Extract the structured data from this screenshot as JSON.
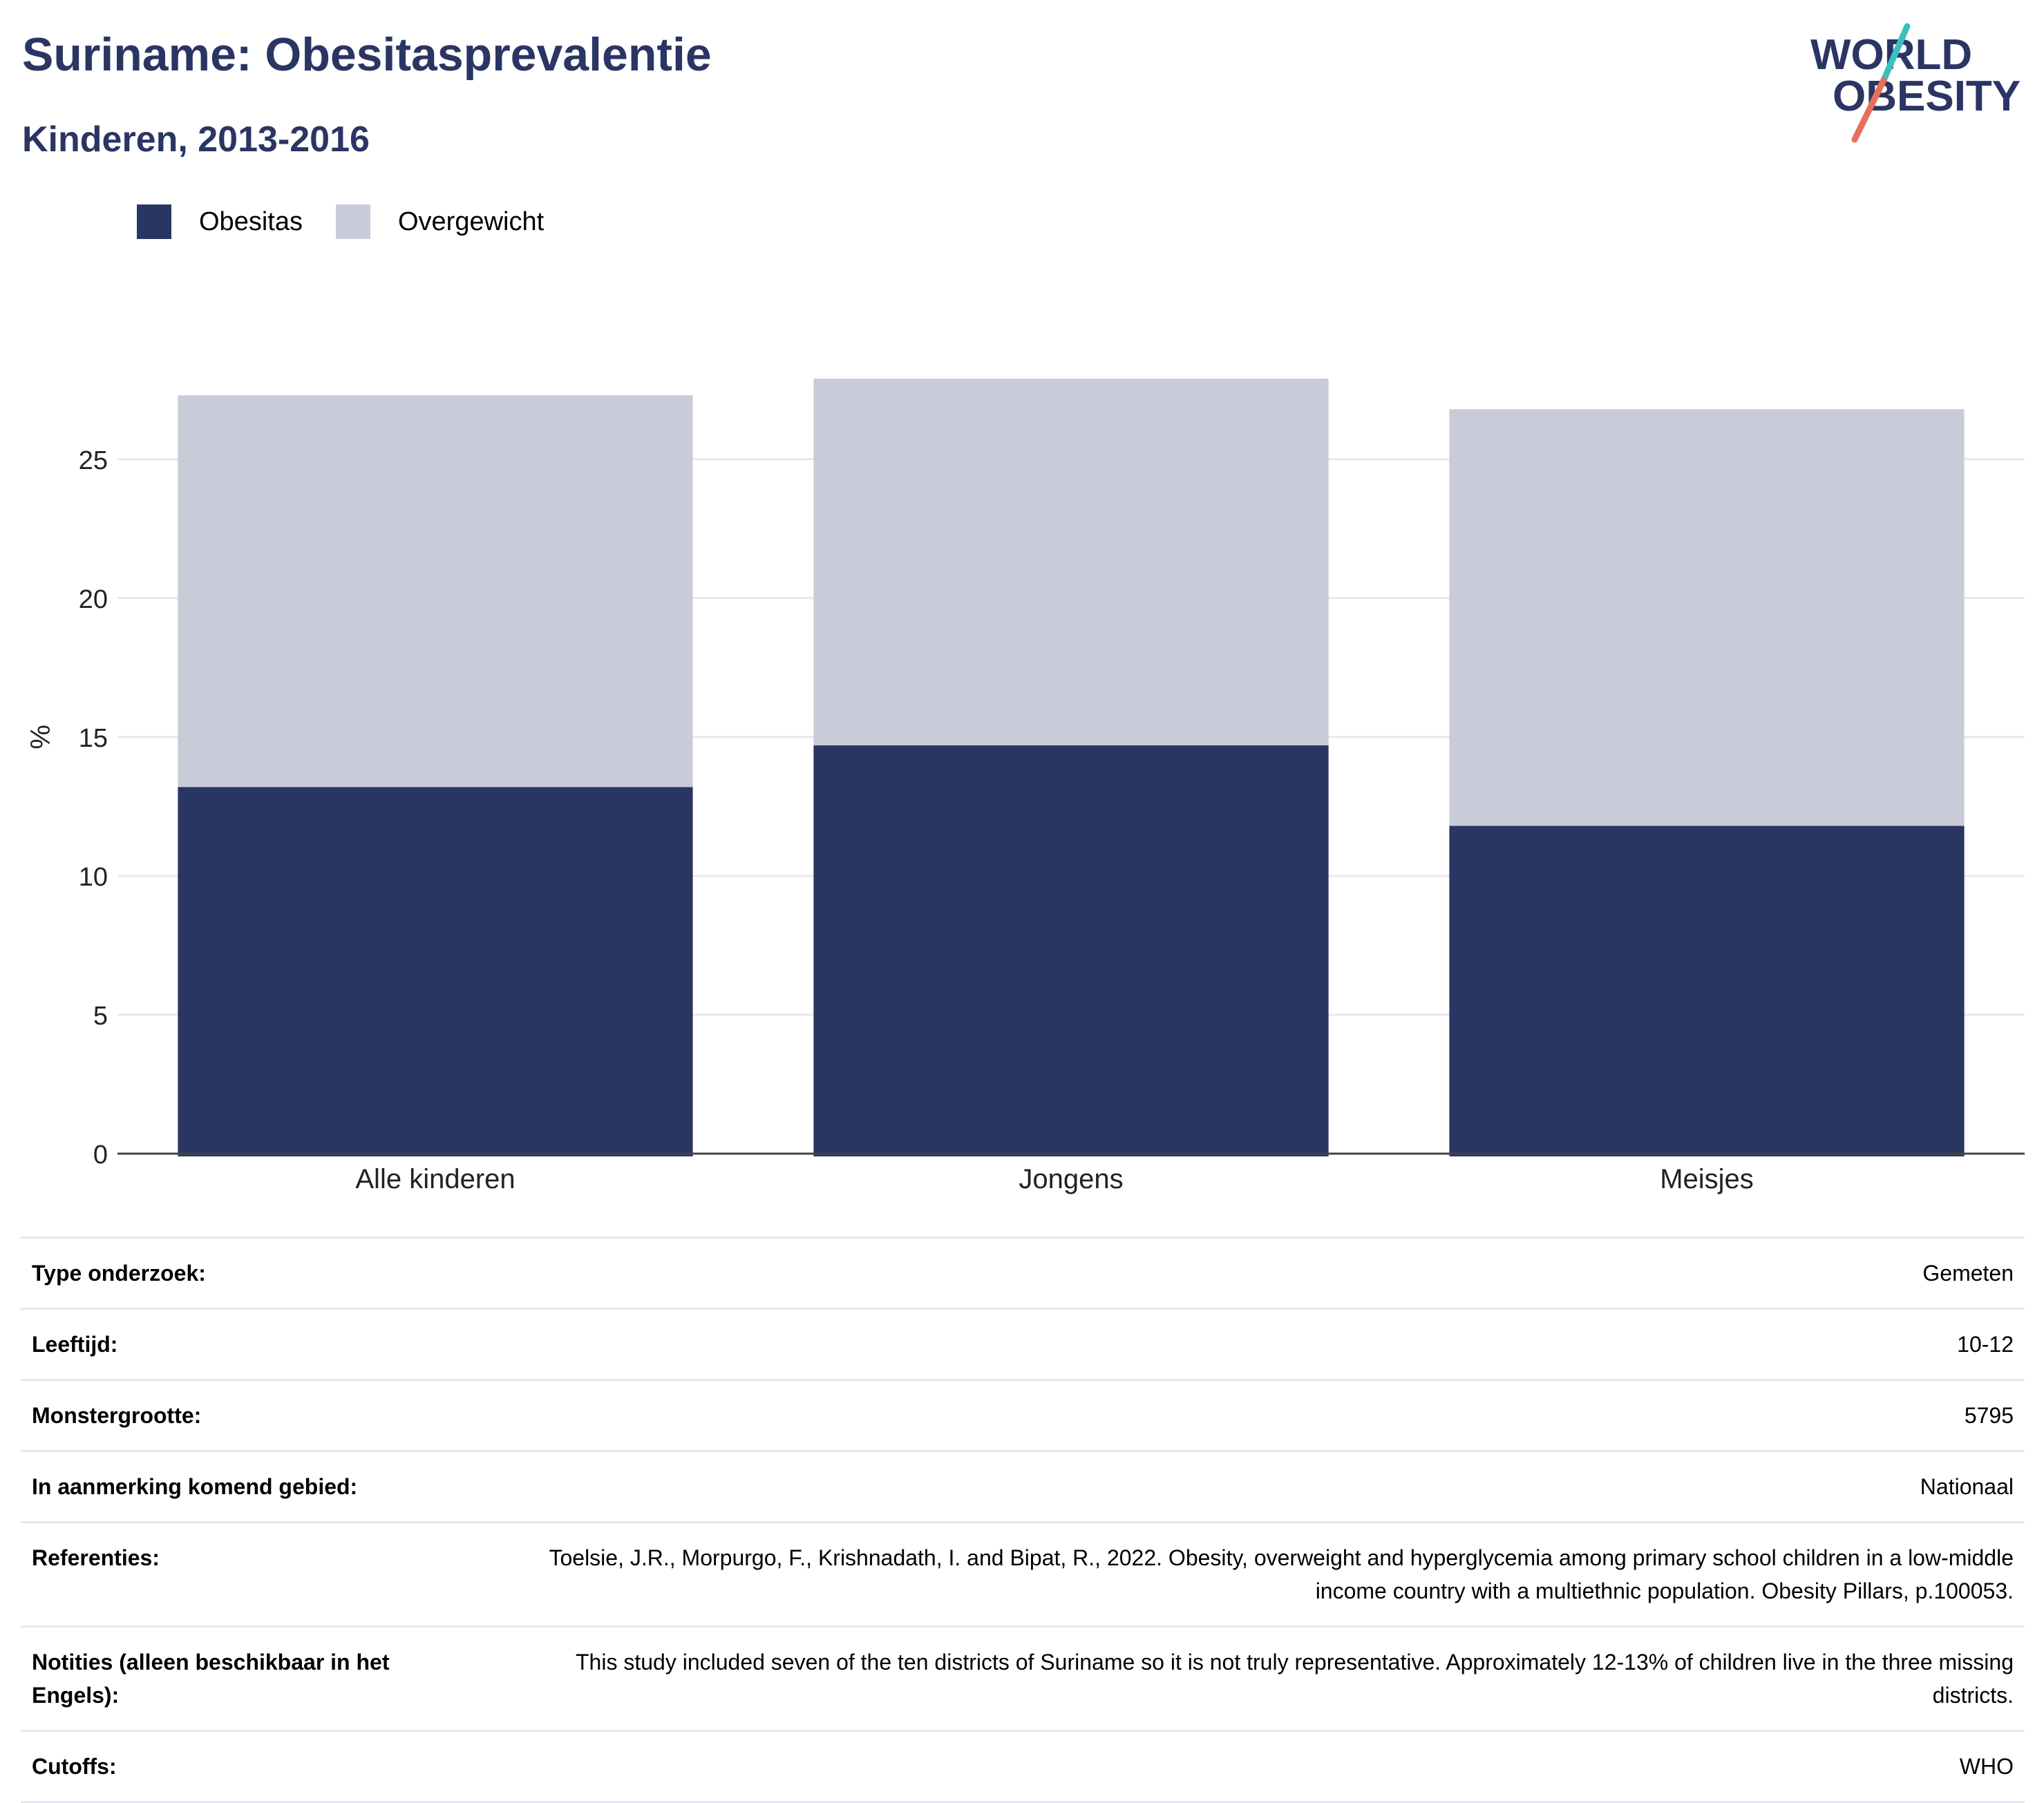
{
  "title": "Suriname: Obesitasprevalentie",
  "subtitle": "Kinderen, 2013-2016",
  "logo": {
    "line1": "WORLD",
    "line2": "OBESITY",
    "colors": {
      "text": "#2a3563",
      "slash_top": "#3bbfbf",
      "slash_bottom": "#e8705a"
    }
  },
  "legend": [
    {
      "name": "Obesitas",
      "color": "#2a3662"
    },
    {
      "name": "Overgewicht",
      "color": "#cacbd8"
    }
  ],
  "chart_data": {
    "type": "bar",
    "stacked": true,
    "categories": [
      "Alle kinderen",
      "Jongens",
      "Meisjes"
    ],
    "series": [
      {
        "name": "Obesitas",
        "color": "#2a3662",
        "values": [
          13.2,
          14.7,
          11.8
        ]
      },
      {
        "name": "Overgewicht",
        "color": "#cacbd8",
        "values": [
          14.1,
          13.2,
          15.0
        ]
      }
    ],
    "ylabel": "%",
    "yticks": [
      0,
      5,
      10,
      15,
      20,
      25
    ],
    "ylim": [
      0,
      28.6
    ],
    "grid": true,
    "legend_position": "top-left"
  },
  "info": [
    {
      "label": "Type onderzoek:",
      "value": "Gemeten"
    },
    {
      "label": "Leeftijd:",
      "value": "10-12"
    },
    {
      "label": "Monstergrootte:",
      "value": "5795"
    },
    {
      "label": "In aanmerking komend gebied:",
      "value": "Nationaal"
    },
    {
      "label": "Referenties:",
      "value": "Toelsie, J.R., Morpurgo, F., Krishnadath, I. and Bipat, R., 2022. Obesity, overweight and hyperglycemia among primary school children in a low-middle income country with a multiethnic population. Obesity Pillars, p.100053."
    },
    {
      "label": "Notities (alleen beschikbaar in het Engels):",
      "value": "This study included seven of the ten districts of Suriname so it is not truly representative. Approximately 12-13% of children live in the three missing districts."
    },
    {
      "label": "Cutoffs:",
      "value": "WHO"
    }
  ]
}
